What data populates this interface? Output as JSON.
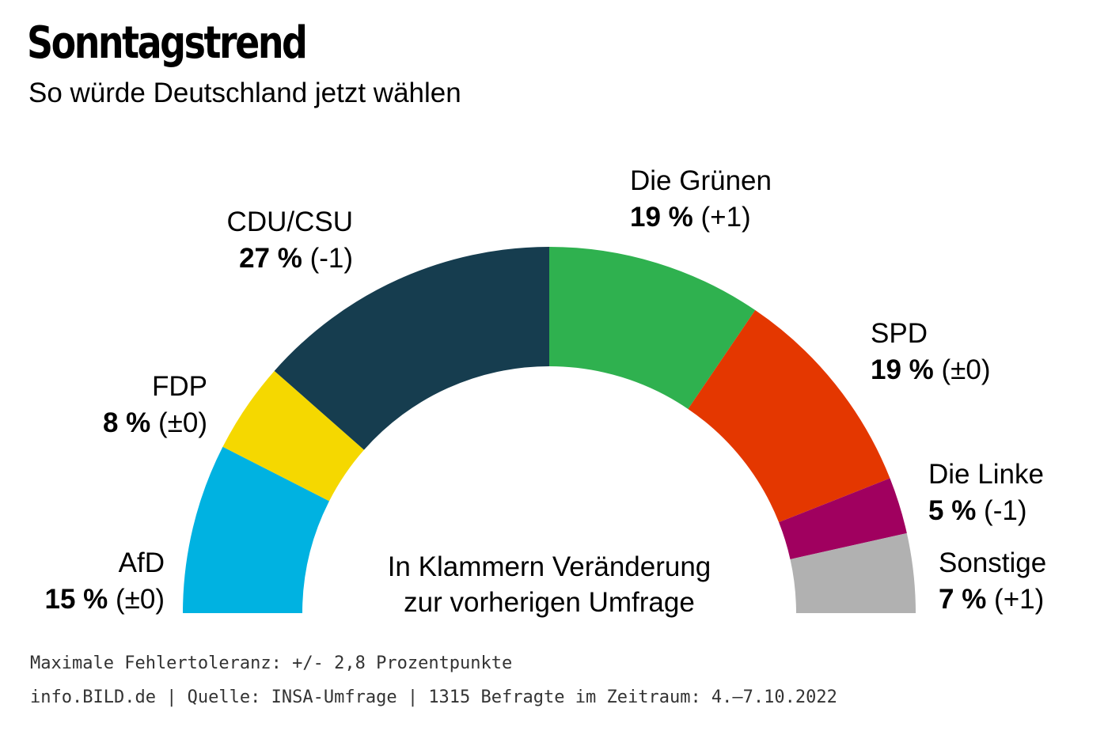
{
  "header": {
    "title": "Sonntagstrend",
    "subtitle": "So würde Deutschland jetzt wählen"
  },
  "chart_data": {
    "type": "pie",
    "variant": "semicircle-parliament",
    "title": "Sonntagstrend",
    "subtitle": "So würde Deutschland jetzt wählen",
    "unit": "%",
    "series": [
      {
        "name": "AfD",
        "value": 15,
        "change": "(±0)",
        "color": "#00b2e1"
      },
      {
        "name": "FDP",
        "value": 8,
        "change": "(±0)",
        "color": "#f5d800"
      },
      {
        "name": "CDU/CSU",
        "value": 27,
        "change": "(-1)",
        "color": "#163d4f"
      },
      {
        "name": "Die Grünen",
        "value": 19,
        "change": "(+1)",
        "color": "#2fb14f"
      },
      {
        "name": "SPD",
        "value": 19,
        "change": "(±0)",
        "color": "#e43700"
      },
      {
        "name": "Die Linke",
        "value": 5,
        "change": "(-1)",
        "color": "#a0005f"
      },
      {
        "name": "Sonstige",
        "value": 7,
        "change": "(+1)",
        "color": "#b1b1b1"
      }
    ],
    "center_note": [
      "In Klammern Veränderung",
      "zur vorherigen Umfrage"
    ]
  },
  "footer": {
    "tolerance": "Maximale Fehlertoleranz: +/- 2,8 Prozentpunkte",
    "source": "info.BILD.de | Quelle: INSA-Umfrage | 1315 Befragte im Zeitraum: 4.–7.10.2022"
  }
}
